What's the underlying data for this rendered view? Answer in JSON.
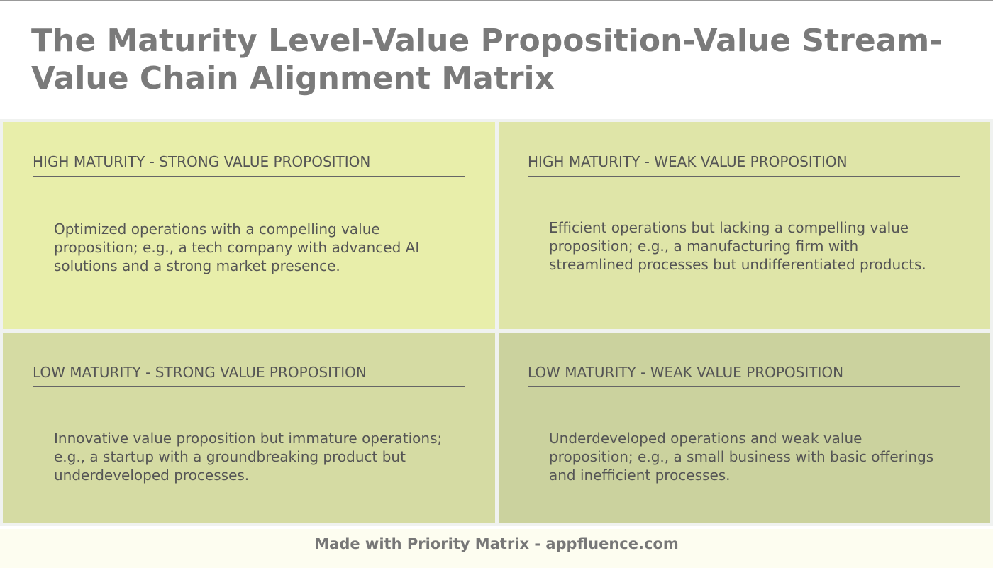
{
  "title": "The Maturity Level-Value Proposition-Value Stream-Value Chain Alignment Matrix",
  "colors": {
    "q1": "#e8eeaa",
    "q2": "#dfe5a8",
    "q3": "#d5dba3",
    "q4": "#cbd29e",
    "gap": "#f0f2f0",
    "footer_bg": "#fdfdf0"
  },
  "quadrants": [
    {
      "header": "HIGH MATURITY - STRONG VALUE PROPOSITION",
      "body": "Optimized operations with a compelling value proposition; e.g., a tech company with advanced AI solutions and a strong market presence."
    },
    {
      "header": "HIGH MATURITY - WEAK VALUE PROPOSITION",
      "body": "Efficient operations but lacking a compelling value proposition; e.g., a manufacturing firm with streamlined processes but undifferentiated products."
    },
    {
      "header": "LOW MATURITY - STRONG VALUE PROPOSITION",
      "body": "Innovative value proposition but immature operations; e.g., a startup with a groundbreaking product but underdeveloped processes."
    },
    {
      "header": "LOW MATURITY - WEAK VALUE PROPOSITION",
      "body": "Underdeveloped operations and weak value proposition; e.g., a small business with basic offerings and inefficient processes."
    }
  ],
  "footer": "Made with Priority Matrix - appfluence.com"
}
